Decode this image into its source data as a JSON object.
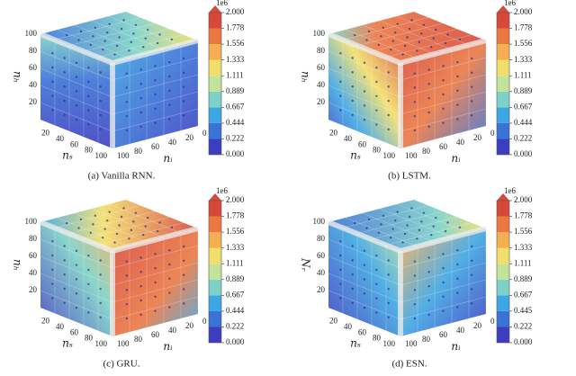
{
  "chart_data": [
    {
      "type": "cube3d",
      "caption": "(a) Vanilla RNN.",
      "scale_label": "1e6",
      "xlabel": "nₛ",
      "ylabel": "nᵢ",
      "zlabel": "nₕ",
      "xlim": [
        0,
        100
      ],
      "xticks": [
        20,
        40,
        60,
        80,
        100
      ],
      "ylim": [
        0,
        100
      ],
      "yticks": [
        0,
        20,
        40,
        60,
        80,
        100
      ],
      "zlim": [
        0,
        100
      ],
      "zticks": [
        20,
        40,
        60,
        80,
        100
      ],
      "clim": [
        0,
        2
      ],
      "cticks": [
        {
          "value": 0,
          "label": "0.000"
        },
        {
          "value": 0.222,
          "label": "0.222"
        },
        {
          "value": 0.444,
          "label": "0.444"
        },
        {
          "value": 0.667,
          "label": "0.667"
        },
        {
          "value": 0.889,
          "label": "0.889"
        },
        {
          "value": 1.111,
          "label": "1.111"
        },
        {
          "value": 1.333,
          "label": "1.333"
        },
        {
          "value": 1.556,
          "label": "1.556"
        },
        {
          "value": 1.778,
          "label": "1.778"
        },
        {
          "value": 2,
          "label": "2.000"
        }
      ],
      "colors": [
        "#3d3dbf",
        "#3a72d6",
        "#3ea6e2",
        "#7dd1c6",
        "#c1e49a",
        "#f2de6a",
        "#f5ae52",
        "#ea7843",
        "#d6483a"
      ]
    },
    {
      "type": "cube3d",
      "caption": "(b) LSTM.",
      "scale_label": "1e6",
      "xlabel": "nₛ",
      "ylabel": "nᵢ",
      "zlabel": "nₕ",
      "xlim": [
        0,
        100
      ],
      "xticks": [
        20,
        40,
        60,
        80,
        100
      ],
      "ylim": [
        0,
        100
      ],
      "yticks": [
        0,
        20,
        40,
        60,
        80,
        100
      ],
      "zlim": [
        0,
        100
      ],
      "zticks": [
        20,
        40,
        60,
        80,
        100
      ],
      "clim": [
        0,
        2
      ],
      "cticks": [
        {
          "value": 0,
          "label": "0.000"
        },
        {
          "value": 0.222,
          "label": "0.222"
        },
        {
          "value": 0.444,
          "label": "0.444"
        },
        {
          "value": 0.667,
          "label": "0.667"
        },
        {
          "value": 0.889,
          "label": "0.889"
        },
        {
          "value": 1.111,
          "label": "1.111"
        },
        {
          "value": 1.333,
          "label": "1.333"
        },
        {
          "value": 1.556,
          "label": "1.556"
        },
        {
          "value": 1.778,
          "label": "1.778"
        },
        {
          "value": 2,
          "label": "2.000"
        }
      ],
      "colors": [
        "#3d3dbf",
        "#3a72d6",
        "#3ea6e2",
        "#7dd1c6",
        "#c1e49a",
        "#f2de6a",
        "#f5ae52",
        "#ea7843",
        "#d6483a"
      ]
    },
    {
      "type": "cube3d",
      "caption": "(c) GRU.",
      "scale_label": "1e6",
      "xlabel": "nₛ",
      "ylabel": "nᵢ",
      "zlabel": "nₕ",
      "xlim": [
        0,
        100
      ],
      "xticks": [
        20,
        40,
        60,
        80,
        100
      ],
      "ylim": [
        0,
        100
      ],
      "yticks": [
        0,
        20,
        40,
        60,
        80,
        100
      ],
      "zlim": [
        0,
        100
      ],
      "zticks": [
        20,
        40,
        60,
        80,
        100
      ],
      "clim": [
        0,
        2
      ],
      "cticks": [
        {
          "value": 0,
          "label": "0.000"
        },
        {
          "value": 0.222,
          "label": "0.222"
        },
        {
          "value": 0.444,
          "label": "0.444"
        },
        {
          "value": 0.667,
          "label": "0.667"
        },
        {
          "value": 0.889,
          "label": "0.889"
        },
        {
          "value": 1.111,
          "label": "1.111"
        },
        {
          "value": 1.333,
          "label": "1.333"
        },
        {
          "value": 1.556,
          "label": "1.556"
        },
        {
          "value": 1.778,
          "label": "1.778"
        },
        {
          "value": 2,
          "label": "2.000"
        }
      ],
      "colors": [
        "#3d3dbf",
        "#3a72d6",
        "#3ea6e2",
        "#7dd1c6",
        "#c1e49a",
        "#f2de6a",
        "#f5ae52",
        "#ea7843",
        "#d6483a"
      ]
    },
    {
      "type": "cube3d",
      "caption": "(d) ESN.",
      "scale_label": "1e6",
      "xlabel": "nₛ",
      "ylabel": "nᵢ",
      "zlabel": "Nᵣ",
      "xlim": [
        0,
        100
      ],
      "xticks": [
        20,
        40,
        60,
        80,
        100
      ],
      "ylim": [
        0,
        100
      ],
      "yticks": [
        0,
        20,
        40,
        60,
        80,
        100
      ],
      "zlim": [
        0,
        100
      ],
      "zticks": [
        20,
        40,
        60,
        80,
        100
      ],
      "clim": [
        0,
        2
      ],
      "cticks": [
        {
          "value": 0,
          "label": "0.000"
        },
        {
          "value": 0.222,
          "label": "0.222"
        },
        {
          "value": 0.445,
          "label": "0.445"
        },
        {
          "value": 0.667,
          "label": "0.667"
        },
        {
          "value": 0.889,
          "label": "0.889"
        },
        {
          "value": 1.111,
          "label": "1.111"
        },
        {
          "value": 1.333,
          "label": "1.333"
        },
        {
          "value": 1.556,
          "label": "1.556"
        },
        {
          "value": 1.778,
          "label": "1.778"
        },
        {
          "value": 2,
          "label": "2.000"
        }
      ],
      "colors": [
        "#3d3dbf",
        "#3a72d6",
        "#3ea6e2",
        "#7dd1c6",
        "#c1e49a",
        "#f2de6a",
        "#f5ae52",
        "#ea7843",
        "#d6483a"
      ]
    }
  ]
}
